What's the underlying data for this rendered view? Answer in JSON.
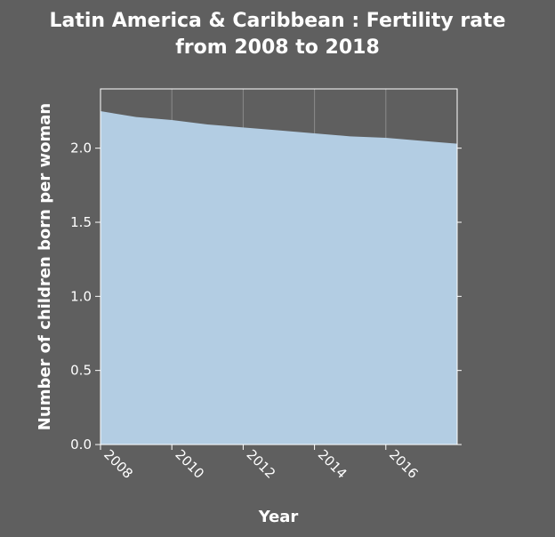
{
  "chart_data": {
    "type": "area",
    "title": "Latin America & Caribbean : Fertility rate from 2008 to 2018",
    "title_lines": [
      "Latin America & Caribbean : Fertility rate",
      "from 2008 to 2018"
    ],
    "xlabel": "Year",
    "ylabel": "Number of children born per woman",
    "x": [
      2008,
      2009,
      2010,
      2011,
      2012,
      2013,
      2014,
      2015,
      2016,
      2017,
      2018
    ],
    "values": [
      2.25,
      2.21,
      2.19,
      2.16,
      2.14,
      2.12,
      2.1,
      2.08,
      2.07,
      2.05,
      2.03
    ],
    "xlim": [
      2008,
      2018
    ],
    "ylim": [
      0,
      2.4
    ],
    "x_ticks": [
      2008,
      2010,
      2012,
      2014,
      2016
    ],
    "x_tick_labels": [
      "2008",
      "2010",
      "2012",
      "2014",
      "2016"
    ],
    "y_ticks": [
      0,
      0.5,
      1.0,
      1.5,
      2.0
    ],
    "y_tick_labels": [
      "0.0",
      "0.5",
      "1.0",
      "1.5",
      "2.0"
    ],
    "grid": true,
    "legend": false,
    "colors": {
      "background": "#5f5f5f",
      "fill": "#b3cde3",
      "grid": "#8a8a8a",
      "axis": "#ffffff",
      "text": "#ffffff"
    }
  }
}
